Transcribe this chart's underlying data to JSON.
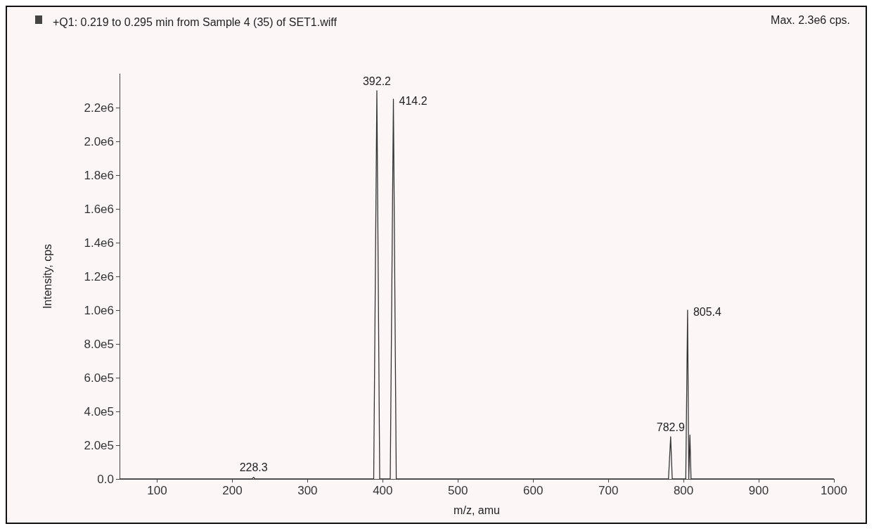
{
  "chart_data": {
    "type": "line",
    "title": "+Q1: 0.219 to 0.295 min from Sample 4 (35) of SET1.wiff",
    "xlabel": "m/z, amu",
    "ylabel": "Intensity, cps",
    "series": [
      {
        "color": "#333333",
        "x": [
          50,
          226,
          228.3,
          230,
          388,
          392.2,
          396,
          410,
          414.2,
          418,
          780,
          782.9,
          785,
          803,
          805.4,
          807,
          808.5,
          810,
          1000
        ],
        "values": [
          0,
          0,
          10000,
          0,
          0,
          2300000,
          0,
          0,
          2250000,
          0,
          0,
          250000,
          0,
          0,
          1000000,
          0,
          260000,
          0,
          0
        ]
      }
    ],
    "xlim": [
      50,
      1000
    ],
    "xticks": [
      100,
      200,
      300,
      400,
      500,
      600,
      700,
      800,
      900,
      1000
    ],
    "ylim": [
      0,
      2400000
    ],
    "yticks": [
      {
        "value": 0,
        "label": "0.0"
      },
      {
        "value": 200000,
        "label": "2.0e5"
      },
      {
        "value": 400000,
        "label": "4.0e5"
      },
      {
        "value": 600000,
        "label": "6.0e5"
      },
      {
        "value": 800000,
        "label": "8.0e5"
      },
      {
        "value": 1000000,
        "label": "1.0e6"
      },
      {
        "value": 1200000,
        "label": "1.2e6"
      },
      {
        "value": 1400000,
        "label": "1.4e6"
      },
      {
        "value": 1600000,
        "label": "1.6e6"
      },
      {
        "value": 1800000,
        "label": "1.8e6"
      },
      {
        "value": 2000000,
        "label": "2.0e6"
      },
      {
        "value": 2200000,
        "label": "2.2e6"
      }
    ],
    "annotations": [
      "Max. 2.3e6 cps.",
      {
        "text": "228.3",
        "x": 228.3,
        "y": 10000
      },
      {
        "text": "392.2",
        "x": 392.2,
        "y": 2300000
      },
      {
        "text": "414.2",
        "x": 414.2,
        "y": 2250000
      },
      {
        "text": "782.9",
        "x": 782.9,
        "y": 250000
      },
      {
        "text": "805.4",
        "x": 805.4,
        "y": 1000000
      }
    ],
    "grid": false,
    "marker": "none",
    "line_style": "solid"
  }
}
